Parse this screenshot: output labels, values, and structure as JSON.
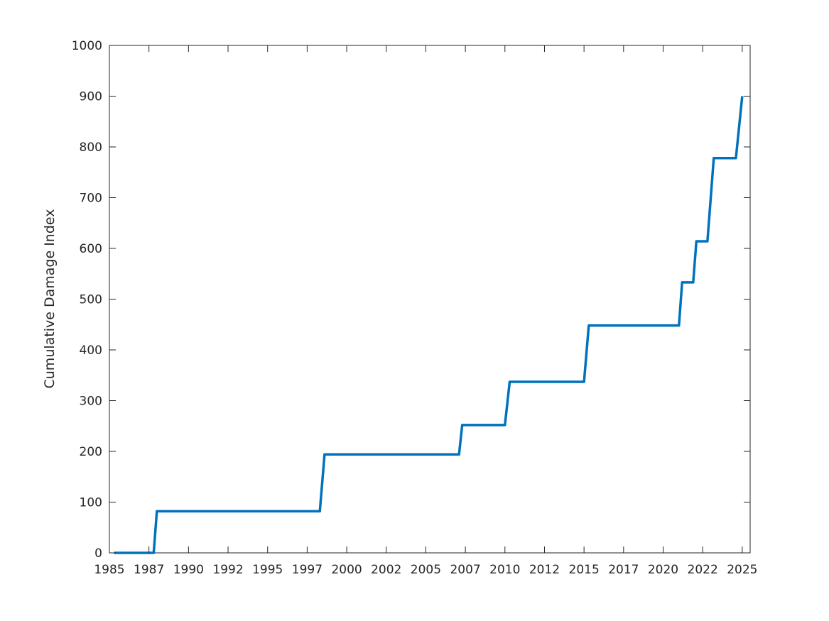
{
  "chart_data": {
    "type": "line",
    "title": "",
    "xlabel": "",
    "ylabel": "Cumulative Damage Index",
    "xlim": [
      1985.0,
      2025.5
    ],
    "ylim": [
      0,
      1000
    ],
    "grid": false,
    "legend": "none",
    "box": true,
    "line_color": "#0072BD",
    "axis_color": "#262626",
    "x_ticks": [
      {
        "value": 1985.0,
        "label": "1985"
      },
      {
        "value": 1987.5,
        "label": "1987"
      },
      {
        "value": 1990.0,
        "label": "1990"
      },
      {
        "value": 1992.5,
        "label": "1992"
      },
      {
        "value": 1995.0,
        "label": "1995"
      },
      {
        "value": 1997.5,
        "label": "1997"
      },
      {
        "value": 2000.0,
        "label": "2000"
      },
      {
        "value": 2002.5,
        "label": "2002"
      },
      {
        "value": 2005.0,
        "label": "2005"
      },
      {
        "value": 2007.5,
        "label": "2007"
      },
      {
        "value": 2010.0,
        "label": "2010"
      },
      {
        "value": 2012.5,
        "label": "2012"
      },
      {
        "value": 2015.0,
        "label": "2015"
      },
      {
        "value": 2017.5,
        "label": "2017"
      },
      {
        "value": 2020.0,
        "label": "2020"
      },
      {
        "value": 2022.5,
        "label": "2022"
      },
      {
        "value": 2025.0,
        "label": "2025"
      }
    ],
    "y_ticks": [
      {
        "value": 0,
        "label": "0"
      },
      {
        "value": 100,
        "label": "100"
      },
      {
        "value": 200,
        "label": "200"
      },
      {
        "value": 300,
        "label": "300"
      },
      {
        "value": 400,
        "label": "400"
      },
      {
        "value": 500,
        "label": "500"
      },
      {
        "value": 600,
        "label": "600"
      },
      {
        "value": 700,
        "label": "700"
      },
      {
        "value": 800,
        "label": "800"
      },
      {
        "value": 900,
        "label": "900"
      },
      {
        "value": 1000,
        "label": "1000"
      }
    ],
    "series": [
      {
        "x": [
          1985.3,
          1987.8,
          1988.0,
          1998.3,
          1998.6,
          2007.1,
          2007.3,
          2010.0,
          2010.3,
          2015.0,
          2015.3,
          2021.0,
          2021.2,
          2021.9,
          2022.1,
          2022.8,
          2023.2,
          2024.6,
          2025.0
        ],
        "y": [
          0,
          0,
          82,
          82,
          194,
          194,
          252,
          252,
          337,
          337,
          448,
          448,
          533,
          533,
          614,
          614,
          778,
          778,
          900
        ]
      }
    ]
  }
}
